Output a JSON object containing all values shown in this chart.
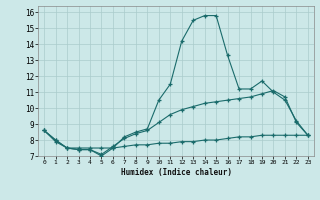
{
  "xlabel": "Humidex (Indice chaleur)",
  "bg_color": "#cce8e8",
  "grid_color": "#aacccc",
  "line_color": "#1a6b6b",
  "xlim": [
    -0.5,
    23.5
  ],
  "ylim": [
    7,
    16.4
  ],
  "xtick_labels": [
    "0",
    "1",
    "2",
    "3",
    "4",
    "5",
    "6",
    "7",
    "8",
    "9",
    "10",
    "11",
    "12",
    "13",
    "14",
    "15",
    "16",
    "17",
    "18",
    "19",
    "20",
    "21",
    "22",
    "23"
  ],
  "ytick_labels": [
    "7",
    "8",
    "9",
    "10",
    "11",
    "12",
    "13",
    "14",
    "15",
    "16"
  ],
  "line1_x": [
    0,
    1,
    2,
    3,
    4,
    5,
    6,
    7,
    8,
    9,
    10,
    11,
    12,
    13,
    14,
    15,
    16,
    17,
    18,
    19,
    20,
    21,
    22,
    23
  ],
  "line1_y": [
    8.6,
    8.0,
    7.5,
    7.4,
    7.4,
    7.0,
    7.5,
    8.2,
    8.5,
    8.7,
    10.5,
    11.5,
    14.2,
    15.5,
    15.8,
    15.8,
    13.3,
    11.2,
    11.2,
    11.7,
    11.0,
    10.5,
    9.2,
    8.3
  ],
  "line2_x": [
    0,
    1,
    2,
    3,
    4,
    5,
    6,
    7,
    8,
    9,
    10,
    11,
    12,
    13,
    14,
    15,
    16,
    17,
    18,
    19,
    20,
    21,
    22,
    23
  ],
  "line2_y": [
    8.6,
    8.0,
    7.5,
    7.4,
    7.4,
    7.1,
    7.6,
    8.1,
    8.4,
    8.6,
    9.1,
    9.6,
    9.9,
    10.1,
    10.3,
    10.4,
    10.5,
    10.6,
    10.7,
    10.9,
    11.1,
    10.7,
    9.1,
    8.3
  ],
  "line3_x": [
    0,
    1,
    2,
    3,
    4,
    5,
    6,
    7,
    8,
    9,
    10,
    11,
    12,
    13,
    14,
    15,
    16,
    17,
    18,
    19,
    20,
    21,
    22,
    23
  ],
  "line3_y": [
    8.6,
    7.9,
    7.5,
    7.5,
    7.5,
    7.5,
    7.5,
    7.6,
    7.7,
    7.7,
    7.8,
    7.8,
    7.9,
    7.9,
    8.0,
    8.0,
    8.1,
    8.2,
    8.2,
    8.3,
    8.3,
    8.3,
    8.3,
    8.3
  ]
}
